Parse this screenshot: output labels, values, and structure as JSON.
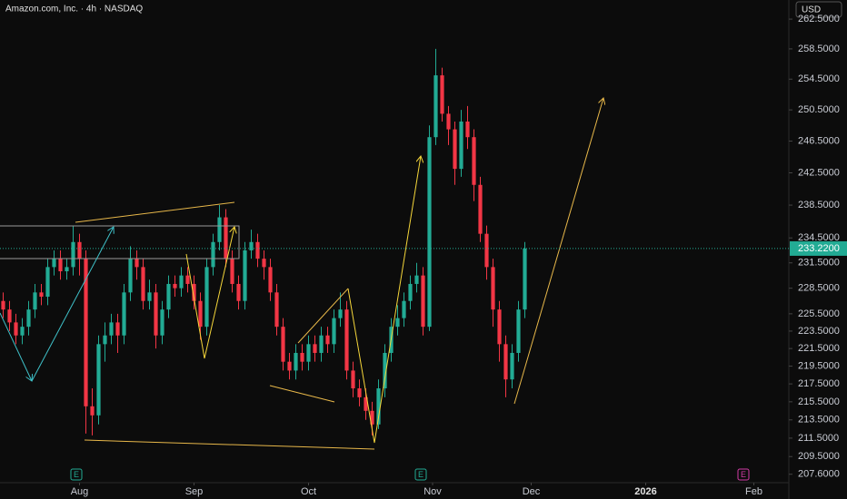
{
  "chart_data": {
    "type": "candlestick",
    "title": "Amazon.com, Inc. · 4h · NASDAQ",
    "currency": "USD",
    "log_scale": true,
    "up_color": "#22ab94",
    "down_color": "#f23645",
    "open": [
      227,
      226,
      224.5,
      223,
      224,
      226,
      228,
      227.5,
      231,
      232,
      230.5,
      231,
      234,
      232,
      215,
      214,
      222,
      223,
      224.5,
      223,
      228,
      232,
      231,
      227,
      228,
      223,
      226,
      229,
      228.5,
      230,
      229,
      227,
      224,
      231,
      234,
      237,
      232,
      229,
      227,
      233,
      234,
      232,
      231,
      228,
      224,
      220,
      219,
      221,
      220,
      222,
      221,
      223,
      222,
      225,
      226,
      219,
      217,
      216,
      214.5,
      213,
      217,
      221,
      224,
      225,
      227,
      229,
      230,
      224,
      247,
      255,
      250,
      248,
      243,
      249,
      247,
      241,
      235,
      231,
      226,
      222,
      218,
      221,
      226
    ],
    "high": [
      228,
      227,
      225.5,
      225,
      227,
      229,
      229,
      232,
      233,
      233,
      232,
      236,
      235,
      233,
      217,
      223,
      224.5,
      225.5,
      225.5,
      229,
      233.5,
      233,
      232,
      229.5,
      229,
      227,
      230,
      230,
      231,
      231,
      230,
      228,
      232,
      235,
      238.5,
      238,
      233,
      230,
      234,
      235.5,
      235,
      233,
      232,
      229,
      225,
      221,
      222,
      222,
      223,
      223,
      224,
      224,
      226,
      228,
      227,
      220,
      218,
      217,
      215.5,
      218,
      222,
      225,
      226.5,
      228,
      230,
      231.5,
      231,
      248.5,
      258.5,
      256,
      251,
      249,
      250.5,
      251,
      248,
      242,
      236,
      232,
      227,
      223,
      222,
      227,
      234
    ],
    "low": [
      225,
      223.5,
      222,
      222,
      223,
      225,
      226.5,
      226.5,
      230,
      229.5,
      229.5,
      230,
      230,
      212,
      211.8,
      213,
      220,
      222,
      221,
      222,
      227,
      229.5,
      226,
      226,
      221.5,
      222,
      225,
      227.5,
      227.5,
      228,
      226,
      222.5,
      223,
      230,
      233,
      231,
      228,
      226,
      226,
      232,
      231,
      229.5,
      227,
      223,
      219,
      218,
      218,
      219,
      219,
      220,
      220,
      221,
      221,
      224,
      218,
      216,
      215,
      213.5,
      211.8,
      212.5,
      216,
      220,
      223,
      224,
      226,
      228,
      223,
      223.5,
      246,
      249,
      246,
      241,
      242,
      245.5,
      239,
      234,
      229.5,
      224,
      220,
      216,
      217,
      220,
      225
    ],
    "close": [
      226,
      224.5,
      223,
      224,
      226,
      228,
      227.5,
      231,
      232,
      230.5,
      231,
      234,
      232,
      215,
      214,
      222,
      223,
      224.5,
      223,
      228,
      232,
      231,
      227,
      228,
      223,
      226,
      229,
      228.5,
      230,
      229,
      227,
      224,
      231,
      234,
      237,
      232,
      229,
      227,
      233,
      234,
      232,
      231,
      228,
      224,
      220,
      219,
      221,
      220,
      222,
      221,
      223,
      222,
      225,
      226,
      219,
      217,
      216,
      214.5,
      213,
      217,
      221,
      224,
      225,
      227,
      229,
      230,
      224,
      247,
      255,
      250,
      248,
      243,
      249,
      247,
      241,
      235,
      231,
      226,
      222,
      218,
      221,
      226,
      233.22
    ],
    "xlim": [
      -0.5,
      123.5
    ],
    "xticks": [
      {
        "value": 12,
        "label": "Aug"
      },
      {
        "value": 30,
        "label": "Sep"
      },
      {
        "value": 48,
        "label": "Oct"
      },
      {
        "value": 67.5,
        "label": "Nov"
      },
      {
        "value": 83,
        "label": "Dec"
      },
      {
        "value": 101,
        "label": "2026"
      },
      {
        "value": 118,
        "label": "Feb"
      }
    ],
    "ylim": [
      206.7,
      265.1
    ],
    "yticks": [
      {
        "value": 262.5,
        "label": "262.5000"
      },
      {
        "value": 258.5,
        "label": "258.5000"
      },
      {
        "value": 254.5,
        "label": "254.5000"
      },
      {
        "value": 250.5,
        "label": "250.5000"
      },
      {
        "value": 246.5,
        "label": "246.5000"
      },
      {
        "value": 242.5,
        "label": "242.5000"
      },
      {
        "value": 238.5,
        "label": "238.5000"
      },
      {
        "value": 234.5,
        "label": "234.5000"
      },
      {
        "value": 231.5,
        "label": "231.5000"
      },
      {
        "value": 228.5,
        "label": "228.5000"
      },
      {
        "value": 225.5,
        "label": "225.5000"
      },
      {
        "value": 223.5,
        "label": "223.5000"
      },
      {
        "value": 221.5,
        "label": "221.5000"
      },
      {
        "value": 219.5,
        "label": "219.5000"
      },
      {
        "value": 217.5,
        "label": "217.5000"
      },
      {
        "value": 215.5,
        "label": "215.5000"
      },
      {
        "value": 213.5,
        "label": "213.5000"
      },
      {
        "value": 211.5,
        "label": "211.5000"
      },
      {
        "value": 209.5,
        "label": "209.5000"
      },
      {
        "value": 207.6,
        "label": "207.6000"
      }
    ],
    "price_line": {
      "value": 233.22,
      "label": "233.2200"
    },
    "earnings_markers": [
      "E",
      "E",
      "E"
    ]
  }
}
